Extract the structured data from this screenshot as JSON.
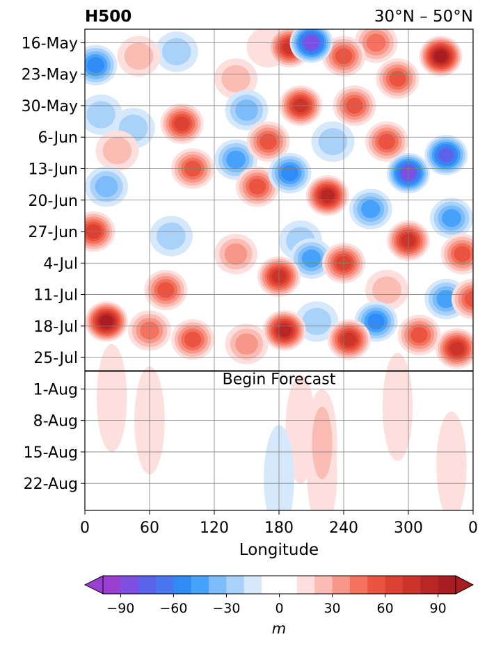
{
  "chart_data": {
    "type": "heatmap",
    "title_left": "H500",
    "title_right": "30°N – 50°N",
    "xlabel": "Longitude",
    "ylabel": "",
    "x_ticks": [
      "0",
      "60",
      "120",
      "180",
      "240",
      "300",
      "0"
    ],
    "y_ticks": [
      "16-May",
      "23-May",
      "30-May",
      "6-Jun",
      "13-Jun",
      "20-Jun",
      "27-Jun",
      "4-Jul",
      "11-Jul",
      "18-Jul",
      "25-Jul",
      "1-Aug",
      "8-Aug",
      "15-Aug",
      "22-Aug"
    ],
    "annotation": "Begin Forecast",
    "forecast_start": "2024-07-28",
    "colorbar": {
      "label": "m",
      "ticks": [
        -90,
        -60,
        -30,
        0,
        30,
        60,
        90
      ],
      "levels": [
        -100,
        -90,
        -80,
        -70,
        -60,
        -50,
        -40,
        -30,
        -20,
        -10,
        10,
        20,
        30,
        40,
        50,
        60,
        70,
        80,
        90,
        100
      ],
      "colors": [
        "#9a3fd0",
        "#7e4fe0",
        "#5a62ea",
        "#4a77f0",
        "#2f8cf6",
        "#46a2fb",
        "#7cbcfb",
        "#a9d2fb",
        "#d6e8fb",
        "#ffffff",
        "#fde0de",
        "#fbbcb4",
        "#f7978a",
        "#f3735f",
        "#ea5440",
        "#dd4131",
        "#cc342a",
        "#b82724",
        "#a81d22"
      ],
      "extend": "both"
    },
    "anomaly_features": [
      {
        "lon": 10,
        "date": "2024-05-21",
        "value": -60
      },
      {
        "lon": 50,
        "date": "2024-05-19",
        "value": 30
      },
      {
        "lon": 85,
        "date": "2024-05-18",
        "value": -25
      },
      {
        "lon": 140,
        "date": "2024-05-24",
        "value": 25
      },
      {
        "lon": 170,
        "date": "2024-05-17",
        "value": 20
      },
      {
        "lon": 190,
        "date": "2024-05-17",
        "value": 80
      },
      {
        "lon": 210,
        "date": "2024-05-16",
        "value": -90
      },
      {
        "lon": 240,
        "date": "2024-05-19",
        "value": 60
      },
      {
        "lon": 270,
        "date": "2024-05-16",
        "value": 50
      },
      {
        "lon": 290,
        "date": "2024-05-24",
        "value": 60
      },
      {
        "lon": 330,
        "date": "2024-05-19",
        "value": 95
      },
      {
        "lon": 15,
        "date": "2024-06-01",
        "value": -25
      },
      {
        "lon": 45,
        "date": "2024-06-04",
        "value": -25
      },
      {
        "lon": 150,
        "date": "2024-05-31",
        "value": -40
      },
      {
        "lon": 90,
        "date": "2024-06-03",
        "value": 65
      },
      {
        "lon": 100,
        "date": "2024-06-13",
        "value": 60
      },
      {
        "lon": 200,
        "date": "2024-05-30",
        "value": 75
      },
      {
        "lon": 250,
        "date": "2024-05-30",
        "value": 60
      },
      {
        "lon": 230,
        "date": "2024-06-07",
        "value": -25
      },
      {
        "lon": 140,
        "date": "2024-06-11",
        "value": -45
      },
      {
        "lon": 170,
        "date": "2024-06-07",
        "value": 55
      },
      {
        "lon": 20,
        "date": "2024-06-17",
        "value": -35
      },
      {
        "lon": 30,
        "date": "2024-06-09",
        "value": 30
      },
      {
        "lon": 190,
        "date": "2024-06-14",
        "value": -60
      },
      {
        "lon": 225,
        "date": "2024-06-19",
        "value": 90
      },
      {
        "lon": 160,
        "date": "2024-06-17",
        "value": 55
      },
      {
        "lon": 265,
        "date": "2024-06-22",
        "value": -50
      },
      {
        "lon": 280,
        "date": "2024-06-07",
        "value": 55
      },
      {
        "lon": 300,
        "date": "2024-06-14",
        "value": -90
      },
      {
        "lon": 335,
        "date": "2024-06-10",
        "value": -80
      },
      {
        "lon": 340,
        "date": "2024-06-24",
        "value": -45
      },
      {
        "lon": 8,
        "date": "2024-06-27",
        "value": 70
      },
      {
        "lon": 80,
        "date": "2024-06-28",
        "value": -25
      },
      {
        "lon": 200,
        "date": "2024-06-29",
        "value": -30
      },
      {
        "lon": 140,
        "date": "2024-07-02",
        "value": 40
      },
      {
        "lon": 180,
        "date": "2024-07-07",
        "value": 75
      },
      {
        "lon": 210,
        "date": "2024-07-03",
        "value": -45
      },
      {
        "lon": 240,
        "date": "2024-07-04",
        "value": 65
      },
      {
        "lon": 300,
        "date": "2024-06-29",
        "value": 80
      },
      {
        "lon": 350,
        "date": "2024-07-02",
        "value": 60
      },
      {
        "lon": 280,
        "date": "2024-07-10",
        "value": 30
      },
      {
        "lon": 335,
        "date": "2024-07-12",
        "value": -50
      },
      {
        "lon": 270,
        "date": "2024-07-17",
        "value": -55
      },
      {
        "lon": 20,
        "date": "2024-07-17",
        "value": 95
      },
      {
        "lon": 75,
        "date": "2024-07-10",
        "value": 55
      },
      {
        "lon": 100,
        "date": "2024-07-21",
        "value": 60
      },
      {
        "lon": 60,
        "date": "2024-07-19",
        "value": 45
      },
      {
        "lon": 150,
        "date": "2024-07-22",
        "value": 40
      },
      {
        "lon": 185,
        "date": "2024-07-19",
        "value": 90
      },
      {
        "lon": 215,
        "date": "2024-07-17",
        "value": -25
      },
      {
        "lon": 245,
        "date": "2024-07-21",
        "value": 75
      },
      {
        "lon": 310,
        "date": "2024-07-20",
        "value": 55
      },
      {
        "lon": 345,
        "date": "2024-07-23",
        "value": 80
      },
      {
        "lon": 360,
        "date": "2024-07-12",
        "value": 60
      },
      {
        "lon": 25,
        "date": "2024-08-03",
        "value": 12
      },
      {
        "lon": 60,
        "date": "2024-08-08",
        "value": 12
      },
      {
        "lon": 200,
        "date": "2024-08-10",
        "value": 12
      },
      {
        "lon": 220,
        "date": "2024-08-20",
        "value": 12
      },
      {
        "lon": 290,
        "date": "2024-08-05",
        "value": 12
      },
      {
        "lon": 340,
        "date": "2024-08-18",
        "value": 12
      },
      {
        "lon": 220,
        "date": "2024-08-13",
        "value": 25
      },
      {
        "lon": 180,
        "date": "2024-08-21",
        "value": -12
      }
    ]
  }
}
